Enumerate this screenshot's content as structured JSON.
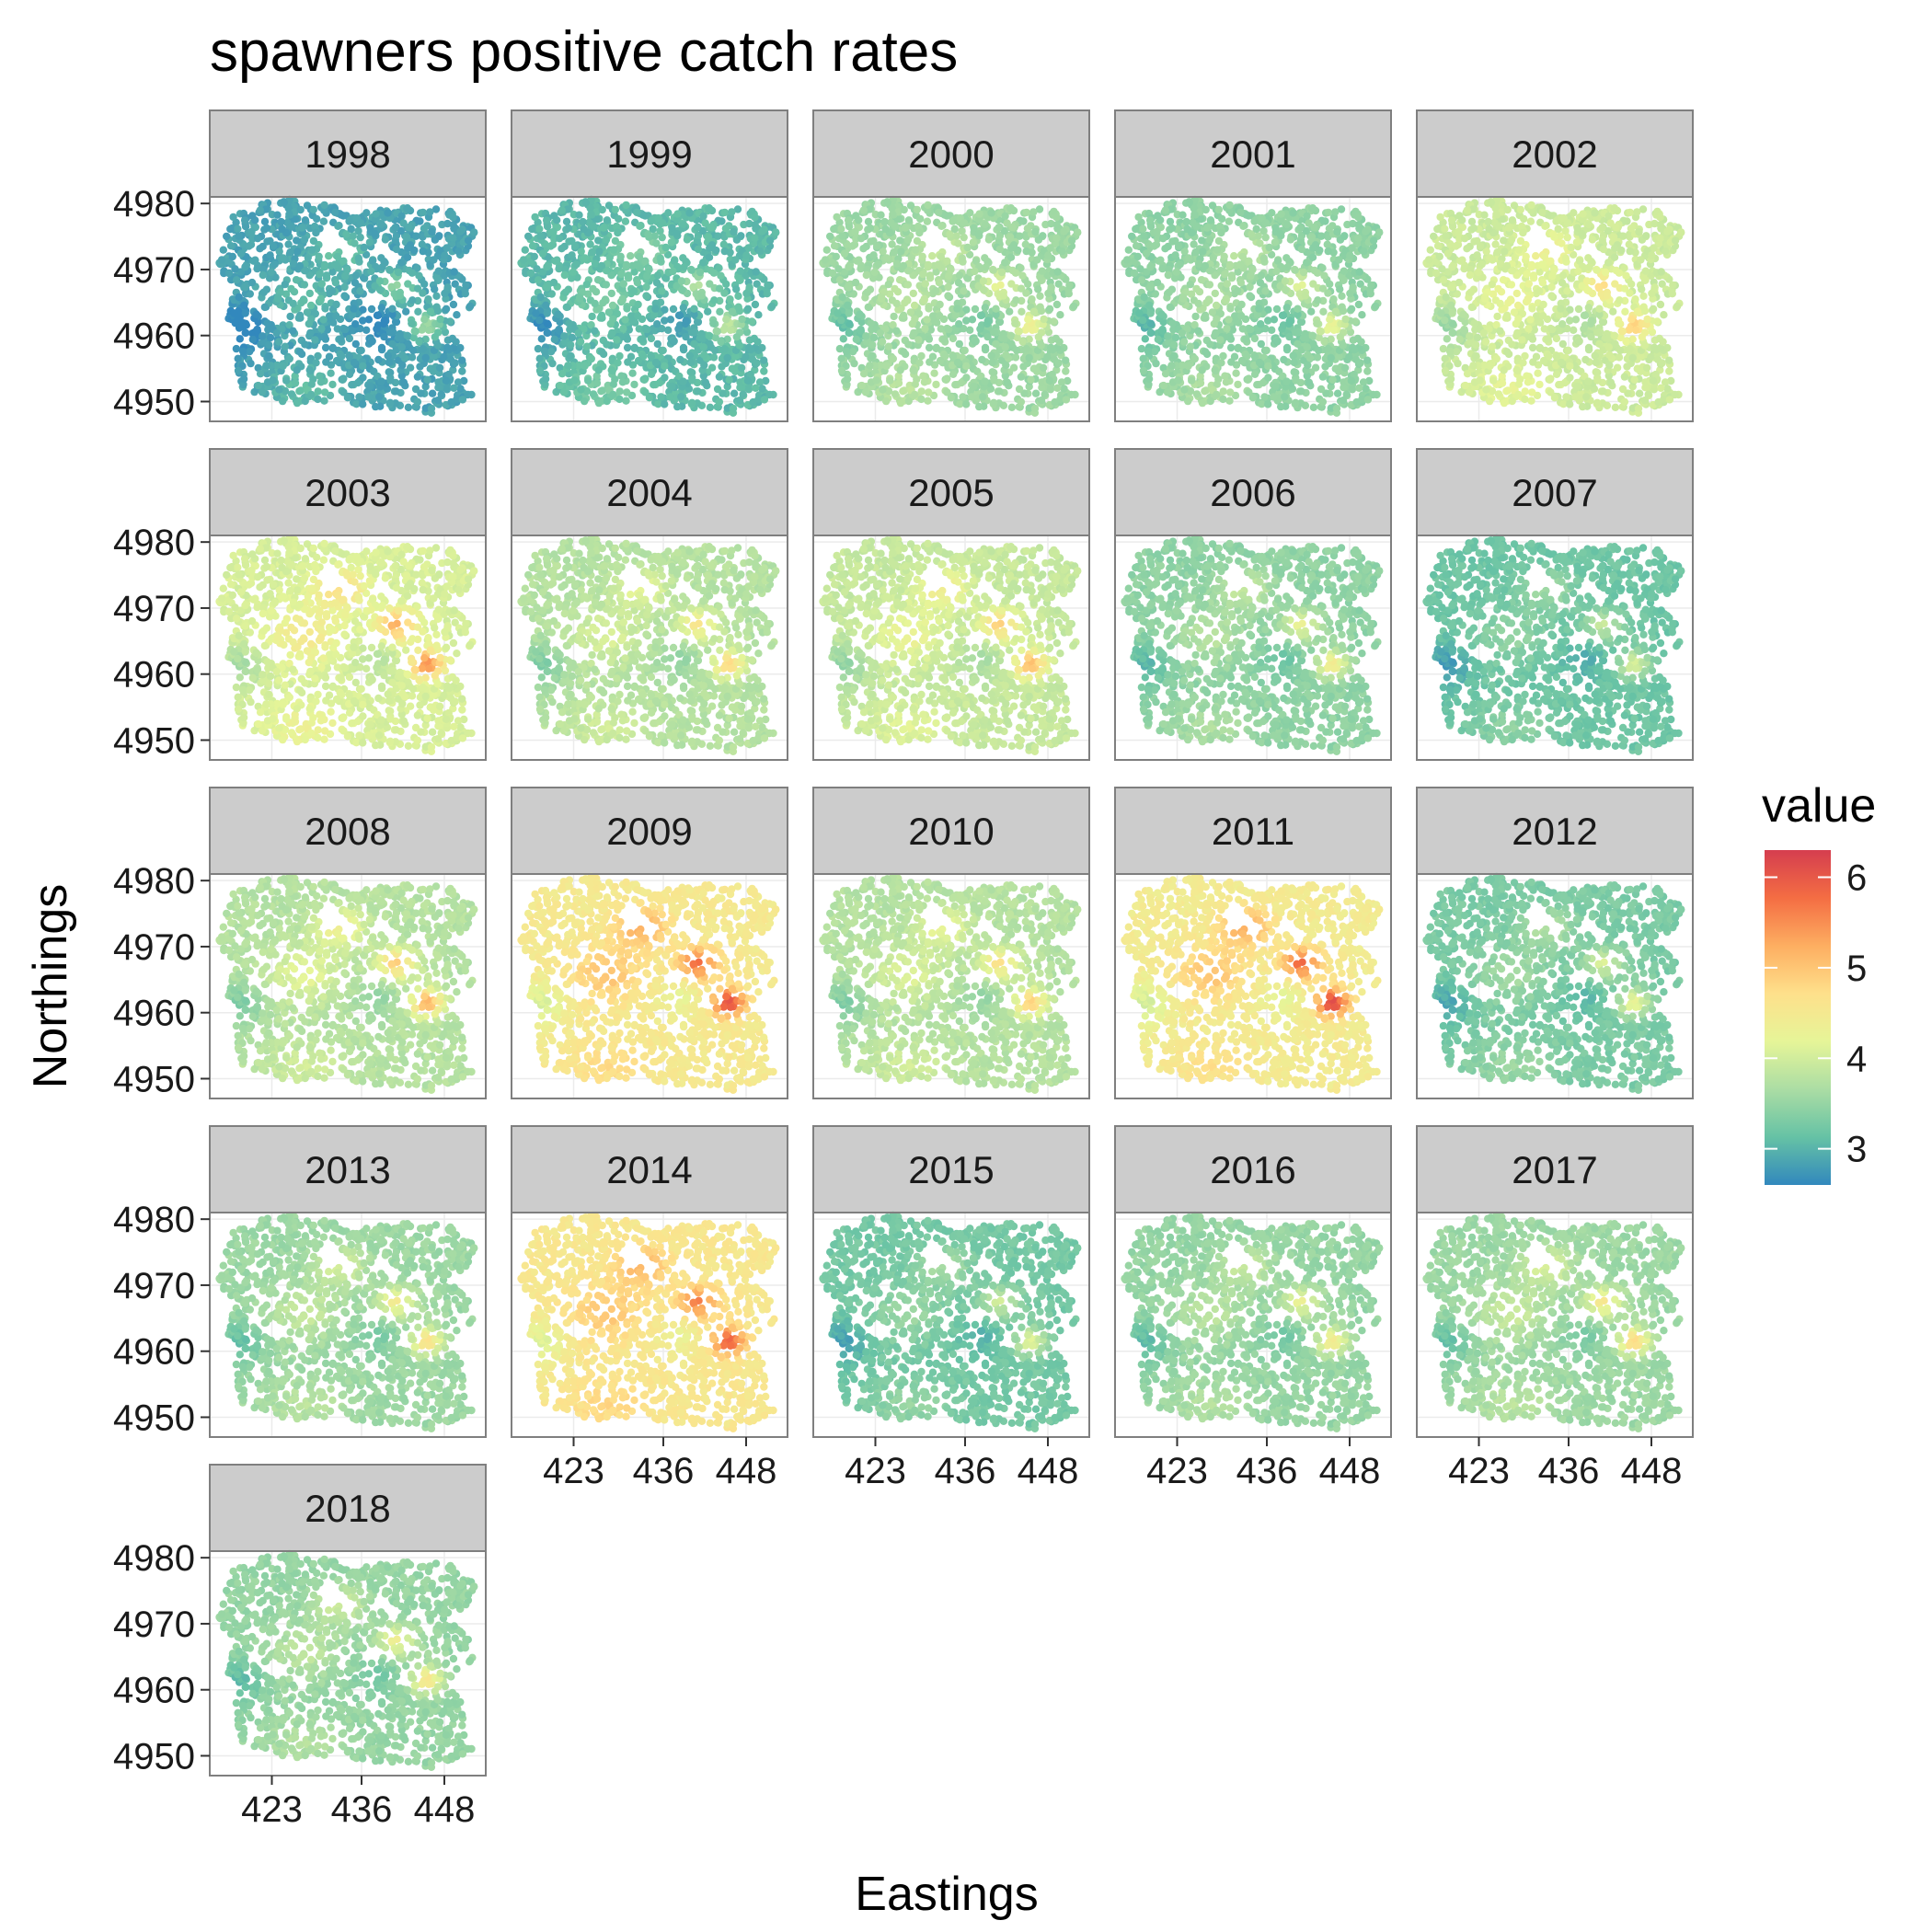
{
  "chart_data": {
    "type": "scatter",
    "title": "spawners positive catch rates",
    "xlabel": "Eastings",
    "ylabel": "Northings",
    "facet_variable": "year",
    "xlim": [
      414,
      454
    ],
    "ylim": [
      4947,
      4981
    ],
    "x_ticks": [
      423,
      436,
      448
    ],
    "y_ticks": [
      4950,
      4960,
      4970,
      4980
    ],
    "legend": {
      "title": "value",
      "position": "right",
      "ticks": [
        3,
        4,
        5,
        6
      ],
      "limits": [
        2.6,
        6.3
      ],
      "colors": [
        "#3288bd",
        "#66c2a5",
        "#abdda4",
        "#e6f598",
        "#fee08b",
        "#fdae61",
        "#f46d43",
        "#d53e4f"
      ]
    },
    "grid": true,
    "panels": [
      {
        "year": "1998",
        "mean_value": 2.85,
        "hotspot_peak": 3.6
      },
      {
        "year": "1999",
        "mean_value": 3.05,
        "hotspot_peak": 3.9
      },
      {
        "year": "2000",
        "mean_value": 3.55,
        "hotspot_peak": 4.4
      },
      {
        "year": "2001",
        "mean_value": 3.45,
        "hotspot_peak": 4.3
      },
      {
        "year": "2002",
        "mean_value": 3.95,
        "hotspot_peak": 4.9
      },
      {
        "year": "2003",
        "mean_value": 4.05,
        "hotspot_peak": 5.5
      },
      {
        "year": "2004",
        "mean_value": 3.75,
        "hotspot_peak": 4.8
      },
      {
        "year": "2005",
        "mean_value": 3.9,
        "hotspot_peak": 5.1
      },
      {
        "year": "2006",
        "mean_value": 3.45,
        "hotspot_peak": 4.5
      },
      {
        "year": "2007",
        "mean_value": 3.2,
        "hotspot_peak": 4.1
      },
      {
        "year": "2008",
        "mean_value": 3.75,
        "hotspot_peak": 5.2
      },
      {
        "year": "2009",
        "mean_value": 4.5,
        "hotspot_peak": 6.1
      },
      {
        "year": "2010",
        "mean_value": 3.75,
        "hotspot_peak": 4.9
      },
      {
        "year": "2011",
        "mean_value": 4.45,
        "hotspot_peak": 6.2
      },
      {
        "year": "2012",
        "mean_value": 3.3,
        "hotspot_peak": 4.3
      },
      {
        "year": "2013",
        "mean_value": 3.55,
        "hotspot_peak": 4.7
      },
      {
        "year": "2014",
        "mean_value": 4.55,
        "hotspot_peak": 5.9
      },
      {
        "year": "2015",
        "mean_value": 3.25,
        "hotspot_peak": 4.2
      },
      {
        "year": "2016",
        "mean_value": 3.5,
        "hotspot_peak": 4.5
      },
      {
        "year": "2017",
        "mean_value": 3.55,
        "hotspot_peak": 4.8
      },
      {
        "year": "2018",
        "mean_value": 3.5,
        "hotspot_peak": 4.6
      }
    ]
  }
}
